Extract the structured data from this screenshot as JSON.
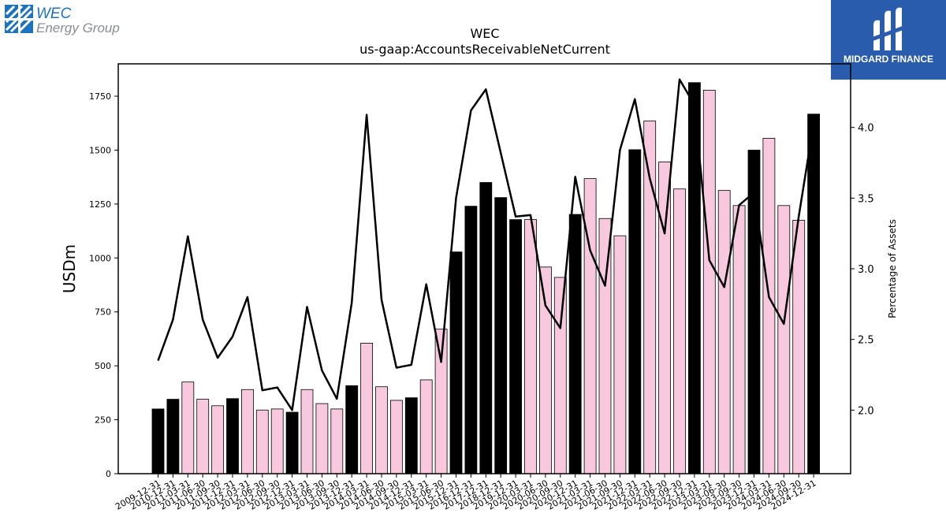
{
  "branding": {
    "company_line1": "WEC",
    "company_line2": "Energy Group",
    "publisher": "MIDGARD FINANCE"
  },
  "chart_data": {
    "type": "bar",
    "title": "WEC",
    "subtitle": "us-gaap:AccountsReceivableNetCurrent",
    "ylabel": "USDm",
    "y2label": "Percentage of Assets",
    "ylim": [
      0,
      1900
    ],
    "y2lim": [
      1.55,
      4.45
    ],
    "yticks": [
      0,
      250,
      500,
      750,
      1000,
      1250,
      1500,
      1750
    ],
    "y2ticks": [
      "2.0",
      "2.5",
      "3.0",
      "3.5",
      "4.0"
    ],
    "colors": {
      "annual": "#000000",
      "quarterly": "#f8c8df",
      "line": "#000000"
    },
    "categories": [
      "2009-12-31",
      "2010-12-31",
      "2011-03-31",
      "2011-06-30",
      "2011-09-30",
      "2011-12-31",
      "2012-03-31",
      "2012-06-30",
      "2012-09-30",
      "2012-12-31",
      "2013-03-31",
      "2013-06-30",
      "2013-09-30",
      "2013-12-31",
      "2014-03-31",
      "2014-06-30",
      "2014-09-30",
      "2014-12-31",
      "2015-03-31",
      "2015-06-30",
      "2015-12-31",
      "2016-12-31",
      "2017-12-31",
      "2018-12-31",
      "2019-12-31",
      "2020-03-31",
      "2020-06-30",
      "2020-09-30",
      "2020-12-31",
      "2021-03-31",
      "2021-06-30",
      "2021-09-30",
      "2021-12-31",
      "2022-03-31",
      "2022-06-30",
      "2022-09-30",
      "2022-12-31",
      "2023-03-31",
      "2023-06-30",
      "2023-09-30",
      "2023-12-31",
      "2024-03-31",
      "2024-06-30",
      "2024-09-30",
      "2024-12-31"
    ],
    "annual": [
      true,
      true,
      false,
      false,
      false,
      true,
      false,
      false,
      false,
      true,
      false,
      false,
      false,
      true,
      false,
      false,
      false,
      true,
      false,
      false,
      true,
      true,
      true,
      true,
      true,
      false,
      false,
      false,
      true,
      false,
      false,
      false,
      true,
      false,
      false,
      false,
      true,
      false,
      false,
      false,
      true,
      false,
      false,
      false,
      true
    ],
    "series": [
      {
        "type": "bar",
        "values": [
          300,
          345,
          425,
          345,
          315,
          348,
          390,
          295,
          300,
          285,
          390,
          325,
          300,
          408,
          605,
          403,
          340,
          352,
          435,
          670,
          1028,
          1240,
          1350,
          1280,
          1178,
          1178,
          958,
          910,
          1202,
          1368,
          1183,
          1103,
          1502,
          1635,
          1445,
          1320,
          1813,
          1778,
          1313,
          1243,
          1500,
          1555,
          1243,
          1175,
          1667
        ]
      },
      {
        "type": "line",
        "axis": "right",
        "values": [
          2.35,
          2.64,
          3.23,
          2.64,
          2.37,
          2.52,
          2.8,
          2.14,
          2.16,
          2.0,
          2.73,
          2.28,
          2.08,
          2.76,
          4.09,
          2.78,
          2.3,
          2.32,
          2.89,
          2.34,
          3.5,
          4.12,
          4.27,
          3.82,
          3.37,
          3.38,
          2.74,
          2.58,
          3.65,
          3.13,
          2.88,
          3.84,
          4.2,
          3.64,
          3.25,
          4.34,
          4.16,
          3.06,
          2.87,
          3.45,
          3.54,
          2.8,
          2.61,
          3.37,
          4.03
        ]
      }
    ]
  }
}
